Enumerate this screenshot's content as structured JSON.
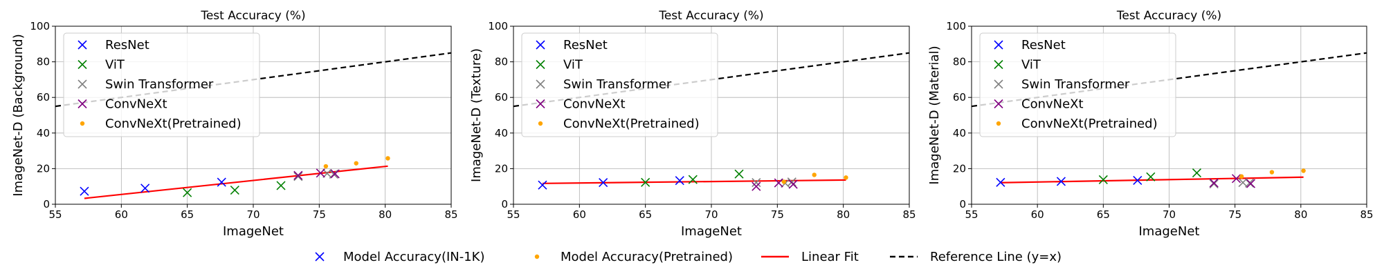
{
  "chart_data": [
    {
      "type": "scatter",
      "title": "Test Accuracy (%)",
      "xlabel": "ImageNet",
      "ylabel": "ImageNet-D (Background)",
      "xlim": [
        55,
        85
      ],
      "ylim": [
        0,
        100
      ],
      "xticks": [
        55,
        60,
        65,
        70,
        75,
        80,
        85
      ],
      "yticks": [
        0,
        20,
        40,
        60,
        80,
        100
      ],
      "grid": true,
      "legend_position": "upper-left",
      "series": [
        {
          "name": "ResNet",
          "color": "#0000ff",
          "marker": "x",
          "points": [
            [
              57.2,
              7.3
            ],
            [
              61.8,
              9.0
            ],
            [
              67.6,
              12.4
            ]
          ]
        },
        {
          "name": "ViT",
          "color": "#008000",
          "marker": "x",
          "points": [
            [
              65.0,
              6.5
            ],
            [
              68.6,
              7.9
            ],
            [
              72.1,
              10.5
            ]
          ]
        },
        {
          "name": "Swin Transformer",
          "color": "#808080",
          "marker": "x",
          "points": [
            [
              73.4,
              15.6
            ],
            [
              75.6,
              17.3
            ],
            [
              76.1,
              16.9
            ]
          ]
        },
        {
          "name": "ConvNeXt",
          "color": "#800080",
          "marker": "x",
          "points": [
            [
              73.4,
              16.2
            ],
            [
              75.1,
              17.5
            ],
            [
              76.2,
              17.1
            ]
          ]
        },
        {
          "name": "ConvNeXt(Pretrained)",
          "color": "#ffa500",
          "marker": "dot",
          "points": [
            [
              75.5,
              21.3
            ],
            [
              77.8,
              23.0
            ],
            [
              80.2,
              25.8
            ]
          ]
        }
      ],
      "linear_fit": {
        "color": "#ff0000",
        "x": [
          57.2,
          80.2
        ],
        "y": [
          3.3,
          21.4
        ]
      },
      "reference_line": {
        "color": "#000000",
        "label": "y=x",
        "x": [
          55,
          85
        ],
        "y": [
          55,
          85
        ]
      }
    },
    {
      "type": "scatter",
      "title": "Test Accuracy (%)",
      "xlabel": "ImageNet",
      "ylabel": "ImageNet-D (Texture)",
      "xlim": [
        55,
        85
      ],
      "ylim": [
        0,
        100
      ],
      "xticks": [
        55,
        60,
        65,
        70,
        75,
        80,
        85
      ],
      "yticks": [
        0,
        20,
        40,
        60,
        80,
        100
      ],
      "grid": true,
      "legend_position": "upper-left",
      "series": [
        {
          "name": "ResNet",
          "color": "#0000ff",
          "marker": "x",
          "points": [
            [
              57.2,
              10.8
            ],
            [
              61.8,
              12.2
            ],
            [
              67.6,
              13.3
            ]
          ]
        },
        {
          "name": "ViT",
          "color": "#008000",
          "marker": "x",
          "points": [
            [
              65.0,
              12.3
            ],
            [
              68.6,
              13.9
            ],
            [
              72.1,
              17.0
            ]
          ]
        },
        {
          "name": "Swin Transformer",
          "color": "#808080",
          "marker": "x",
          "points": [
            [
              73.4,
              12.2
            ],
            [
              75.6,
              11.8
            ],
            [
              76.1,
              12.5
            ]
          ]
        },
        {
          "name": "ConvNeXt",
          "color": "#800080",
          "marker": "x",
          "points": [
            [
              73.4,
              10.0
            ],
            [
              75.1,
              12.0
            ],
            [
              76.2,
              11.2
            ]
          ]
        },
        {
          "name": "ConvNeXt(Pretrained)",
          "color": "#ffa500",
          "marker": "dot",
          "points": [
            [
              75.5,
              12.6
            ],
            [
              77.8,
              16.5
            ],
            [
              80.2,
              15.0
            ]
          ]
        }
      ],
      "linear_fit": {
        "color": "#ff0000",
        "x": [
          57.2,
          80.2
        ],
        "y": [
          11.7,
          13.6
        ]
      },
      "reference_line": {
        "color": "#000000",
        "label": "y=x",
        "x": [
          55,
          85
        ],
        "y": [
          55,
          85
        ]
      }
    },
    {
      "type": "scatter",
      "title": "Test Accuracy (%)",
      "xlabel": "ImageNet",
      "ylabel": "ImageNet-D (Material)",
      "xlim": [
        55,
        85
      ],
      "ylim": [
        0,
        100
      ],
      "xticks": [
        55,
        60,
        65,
        70,
        75,
        80,
        85
      ],
      "yticks": [
        0,
        20,
        40,
        60,
        80,
        100
      ],
      "grid": true,
      "legend_position": "upper-left",
      "series": [
        {
          "name": "ResNet",
          "color": "#0000ff",
          "marker": "x",
          "points": [
            [
              57.2,
              12.3
            ],
            [
              61.8,
              12.8
            ],
            [
              67.6,
              13.4
            ]
          ]
        },
        {
          "name": "ViT",
          "color": "#008000",
          "marker": "x",
          "points": [
            [
              65.0,
              13.8
            ],
            [
              68.6,
              15.4
            ],
            [
              72.1,
              17.6
            ]
          ]
        },
        {
          "name": "Swin Transformer",
          "color": "#808080",
          "marker": "x",
          "points": [
            [
              73.4,
              11.4
            ],
            [
              75.6,
              12.2
            ],
            [
              76.1,
              11.9
            ]
          ]
        },
        {
          "name": "ConvNeXt",
          "color": "#800080",
          "marker": "x",
          "points": [
            [
              73.4,
              12.0
            ],
            [
              75.1,
              14.4
            ],
            [
              76.2,
              11.6
            ]
          ]
        },
        {
          "name": "ConvNeXt(Pretrained)",
          "color": "#ffa500",
          "marker": "dot",
          "points": [
            [
              75.5,
              15.6
            ],
            [
              77.8,
              18.0
            ],
            [
              80.2,
              18.8
            ]
          ]
        }
      ],
      "linear_fit": {
        "color": "#ff0000",
        "x": [
          57.2,
          80.2
        ],
        "y": [
          12.1,
          15.2
        ]
      },
      "reference_line": {
        "color": "#000000",
        "label": "y=x",
        "x": [
          55,
          85
        ],
        "y": [
          55,
          85
        ]
      }
    }
  ],
  "shared_legend": [
    {
      "label": "Model Accuracy(IN-1K)",
      "color": "#0000ff",
      "marker": "x"
    },
    {
      "label": "Model Accuracy(Pretrained)",
      "color": "#ffa500",
      "marker": "dot"
    },
    {
      "label": "Linear Fit",
      "color": "#ff0000",
      "marker": "line"
    },
    {
      "label": "Reference Line (y=x)",
      "color": "#000000",
      "marker": "dashed-line"
    }
  ]
}
